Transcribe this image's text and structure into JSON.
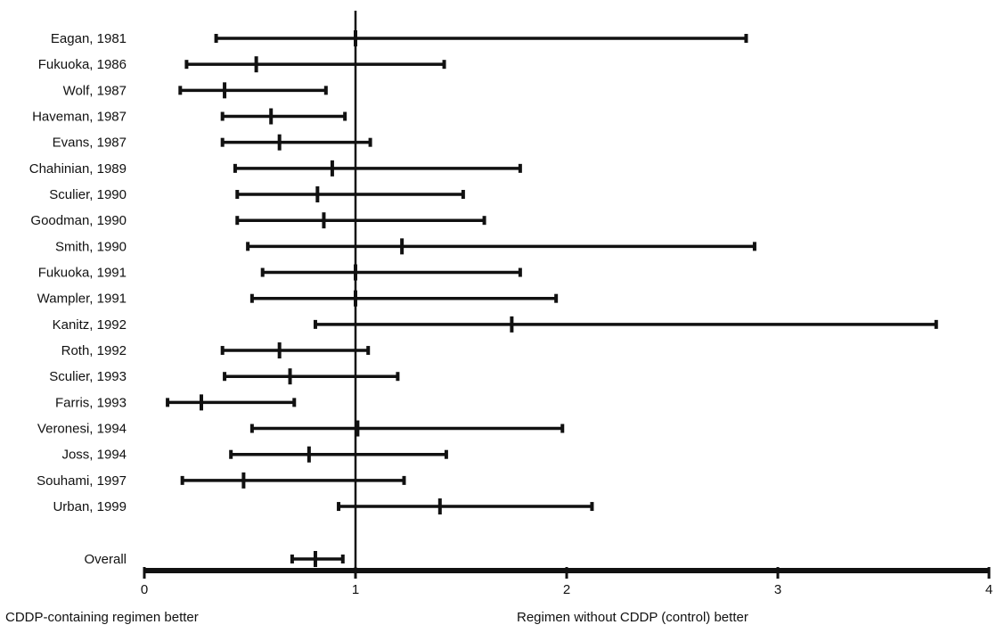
{
  "chart_data": {
    "type": "forest",
    "title": "",
    "xlabel_left": "CDDP-containing regimen better",
    "xlabel_right": "Regimen without CDDP (control) better",
    "xlim": [
      0,
      4
    ],
    "xticks": [
      "0",
      "1",
      "2",
      "3",
      "4"
    ],
    "reference_line": 1,
    "studies": [
      {
        "label": "Eagan, 1981",
        "estimate": 1.0,
        "lower": 0.34,
        "upper": 2.85
      },
      {
        "label": "Fukuoka, 1986",
        "estimate": 0.53,
        "lower": 0.2,
        "upper": 1.42
      },
      {
        "label": "Wolf, 1987",
        "estimate": 0.38,
        "lower": 0.17,
        "upper": 0.86
      },
      {
        "label": "Haveman, 1987",
        "estimate": 0.6,
        "lower": 0.37,
        "upper": 0.95
      },
      {
        "label": "Evans, 1987",
        "estimate": 0.64,
        "lower": 0.37,
        "upper": 1.07
      },
      {
        "label": "Chahinian, 1989",
        "estimate": 0.89,
        "lower": 0.43,
        "upper": 1.78
      },
      {
        "label": "Sculier, 1990",
        "estimate": 0.82,
        "lower": 0.44,
        "upper": 1.51
      },
      {
        "label": "Goodman, 1990",
        "estimate": 0.85,
        "lower": 0.44,
        "upper": 1.61
      },
      {
        "label": "Smith, 1990",
        "estimate": 1.22,
        "lower": 0.49,
        "upper": 2.89
      },
      {
        "label": "Fukuoka, 1991",
        "estimate": 1.0,
        "lower": 0.56,
        "upper": 1.78
      },
      {
        "label": "Wampler, 1991",
        "estimate": 1.0,
        "lower": 0.51,
        "upper": 1.95
      },
      {
        "label": "Kanitz, 1992",
        "estimate": 1.74,
        "lower": 0.81,
        "upper": 3.75
      },
      {
        "label": "Roth, 1992",
        "estimate": 0.64,
        "lower": 0.37,
        "upper": 1.06
      },
      {
        "label": "Sculier, 1993",
        "estimate": 0.69,
        "lower": 0.38,
        "upper": 1.2
      },
      {
        "label": "Farris, 1993",
        "estimate": 0.27,
        "lower": 0.11,
        "upper": 0.71
      },
      {
        "label": "Veronesi, 1994",
        "estimate": 1.01,
        "lower": 0.51,
        "upper": 1.98
      },
      {
        "label": "Joss, 1994",
        "estimate": 0.78,
        "lower": 0.41,
        "upper": 1.43
      },
      {
        "label": "Souhami, 1997",
        "estimate": 0.47,
        "lower": 0.18,
        "upper": 1.23
      },
      {
        "label": "Urban, 1999",
        "estimate": 1.4,
        "lower": 0.92,
        "upper": 2.12
      }
    ],
    "overall": {
      "label": "Overall",
      "estimate": 0.81,
      "lower": 0.7,
      "upper": 0.94
    }
  },
  "colors": {
    "ink": "#111111",
    "background": "#ffffff"
  }
}
